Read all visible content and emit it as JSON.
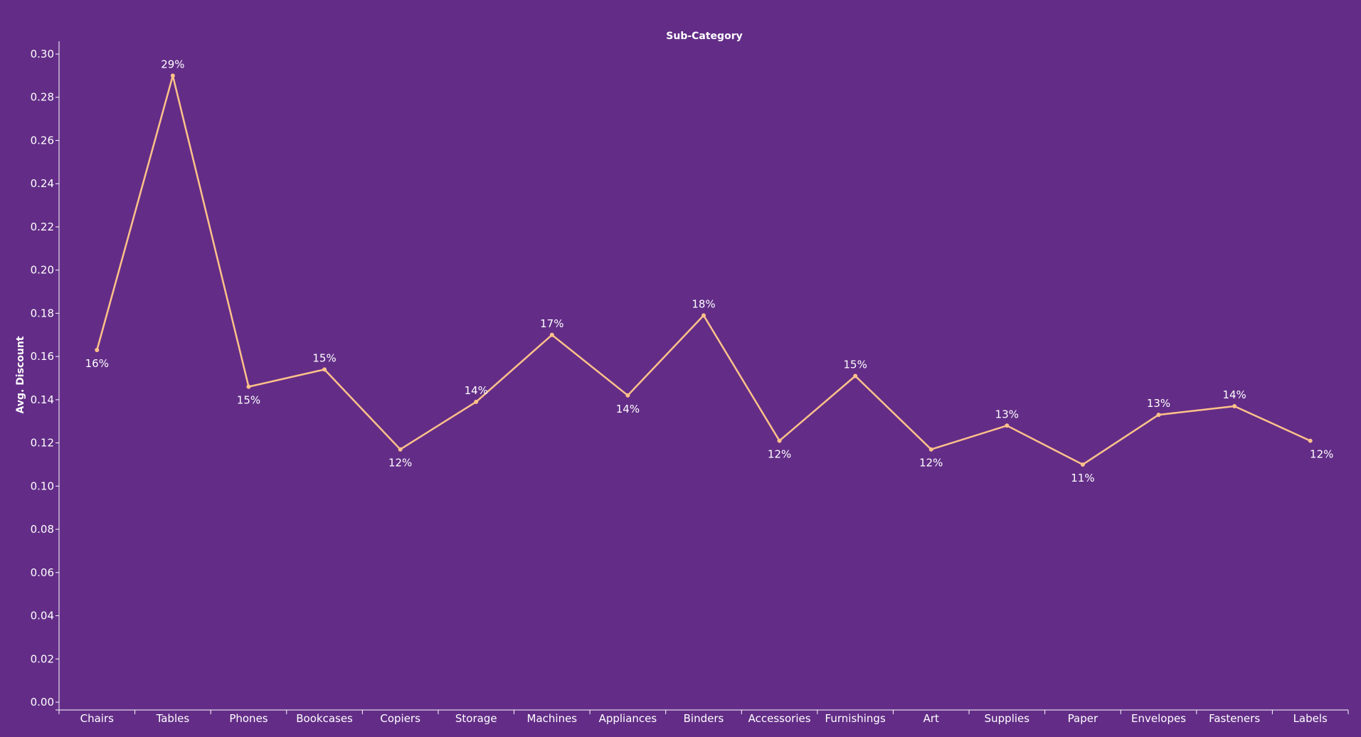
{
  "chart_data": {
    "type": "line",
    "title": "Sub-Category",
    "xlabel": "",
    "ylabel": "Avg. Discount",
    "ylim": [
      0,
      0.3
    ],
    "yticks": [
      "0.00",
      "0.02",
      "0.04",
      "0.06",
      "0.08",
      "0.10",
      "0.12",
      "0.14",
      "0.16",
      "0.18",
      "0.20",
      "0.22",
      "0.24",
      "0.26",
      "0.28",
      "0.30"
    ],
    "grid": false,
    "categories": [
      "Chairs",
      "Tables",
      "Phones",
      "Bookcases",
      "Copiers",
      "Storage",
      "Machines",
      "Appliances",
      "Binders",
      "Accessories",
      "Furnishings",
      "Art",
      "Supplies",
      "Paper",
      "Envelopes",
      "Fasteners",
      "Labels"
    ],
    "values": [
      0.163,
      0.29,
      0.146,
      0.154,
      0.117,
      0.139,
      0.17,
      0.142,
      0.179,
      0.121,
      0.151,
      0.117,
      0.128,
      0.11,
      0.133,
      0.137,
      0.121
    ],
    "data_labels": [
      "16%",
      "29%",
      "15%",
      "15%",
      "12%",
      "14%",
      "17%",
      "14%",
      "18%",
      "12%",
      "15%",
      "12%",
      "13%",
      "11%",
      "13%",
      "14%",
      "12%"
    ],
    "colors": {
      "background": "#632d87",
      "line": "#ffc28a",
      "text": "#ffffff",
      "axis": "#ffffff"
    }
  }
}
